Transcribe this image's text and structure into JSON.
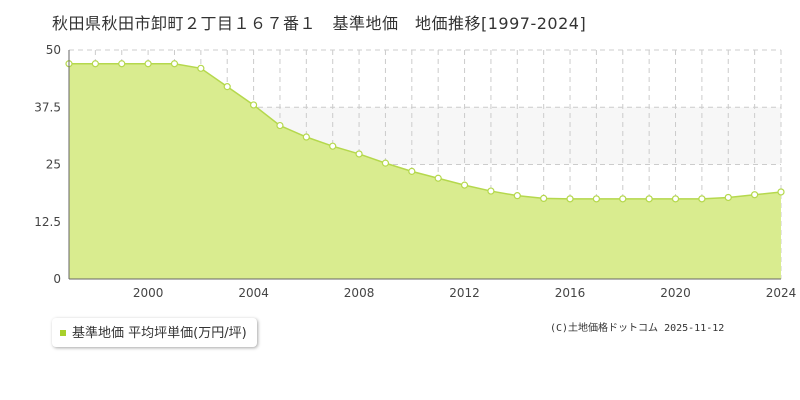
{
  "title": "秋田県秋田市卸町２丁目１６７番１　基準地価　地価推移[1997-2024]",
  "legend": {
    "label": "基準地価 平均坪単価(万円/坪)"
  },
  "copyright": "(C)土地価格ドットコム 2025-11-12",
  "colors": {
    "area_fill": "#d9ec8f",
    "line": "#b5d84d",
    "marker_stroke": "#b5d84d",
    "marker_fill": "#ffffff",
    "grid": "#cccccc",
    "band": "#f7f7f7",
    "legend_swatch": "#a8d02c"
  },
  "chart_data": {
    "type": "area",
    "x": [
      1997,
      1998,
      1999,
      2000,
      2001,
      2002,
      2003,
      2004,
      2005,
      2006,
      2007,
      2008,
      2009,
      2010,
      2011,
      2012,
      2013,
      2014,
      2015,
      2016,
      2017,
      2018,
      2019,
      2020,
      2021,
      2022,
      2023,
      2024
    ],
    "series": [
      {
        "name": "基準地価 平均坪単価(万円/坪)",
        "values": [
          47,
          47,
          47,
          47,
          47,
          46,
          42,
          38,
          33.5,
          31,
          29,
          27.3,
          25.3,
          23.5,
          22,
          20.5,
          19.2,
          18.2,
          17.6,
          17.5,
          17.5,
          17.5,
          17.5,
          17.5,
          17.5,
          17.8,
          18.4,
          19
        ]
      }
    ],
    "ylim": [
      0,
      50
    ],
    "yticks": [
      "0",
      "12.5",
      "25",
      "37.5",
      "50"
    ],
    "ytick_values": [
      0,
      12.5,
      25,
      37.5,
      50
    ],
    "xticks": [
      "2000",
      "2004",
      "2008",
      "2012",
      "2016",
      "2020",
      "2024"
    ],
    "xtick_values": [
      2000,
      2004,
      2008,
      2012,
      2016,
      2020,
      2024
    ],
    "xlim": [
      1997,
      2024
    ],
    "grid": true,
    "legend_position": "bottom-left",
    "title": "",
    "xlabel": "",
    "ylabel": ""
  }
}
